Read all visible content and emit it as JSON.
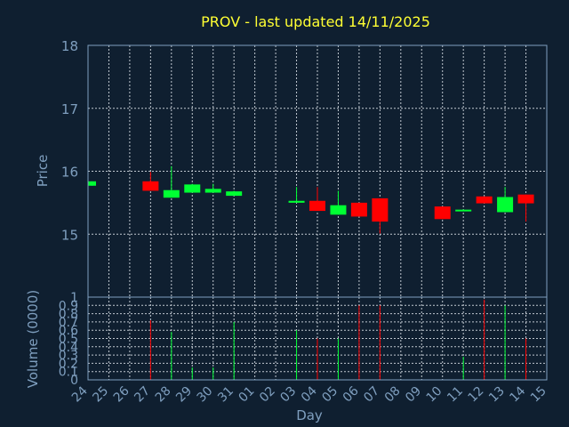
{
  "chart_data": [
    {
      "type": "candlestick",
      "title": "PROV - last updated 14/11/2025",
      "ylabel": "Price",
      "ylim": [
        15.0,
        18.0
      ],
      "yticks": [
        "15",
        "16",
        "17",
        "18"
      ],
      "grid": true,
      "colors": {
        "up": "#00ff33",
        "down": "#ff0000",
        "grid": "#c0c8d0",
        "axis": "#7f9fbf",
        "title": "#ffff33",
        "background": "#0f1f30"
      },
      "candles": [
        {
          "day": "24",
          "open": 15.77,
          "high": 15.84,
          "low": 15.77,
          "close": 15.84
        },
        {
          "day": "27",
          "open": 15.84,
          "high": 15.99,
          "low": 15.69,
          "close": 15.69
        },
        {
          "day": "28",
          "open": 15.58,
          "high": 16.08,
          "low": 15.58,
          "close": 15.7
        },
        {
          "day": "29",
          "open": 15.66,
          "high": 15.8,
          "low": 15.66,
          "close": 15.79
        },
        {
          "day": "30",
          "open": 15.66,
          "high": 15.8,
          "low": 15.66,
          "close": 15.72
        },
        {
          "day": "31",
          "open": 15.61,
          "high": 15.69,
          "low": 15.61,
          "close": 15.68
        },
        {
          "day": "03",
          "open": 15.5,
          "high": 15.75,
          "low": 15.5,
          "close": 15.53
        },
        {
          "day": "04",
          "open": 15.53,
          "high": 15.75,
          "low": 15.37,
          "close": 15.37
        },
        {
          "day": "05",
          "open": 15.31,
          "high": 15.69,
          "low": 15.31,
          "close": 15.46
        },
        {
          "day": "06",
          "open": 15.5,
          "high": 15.5,
          "low": 15.28,
          "close": 15.28
        },
        {
          "day": "07",
          "open": 15.57,
          "high": 15.57,
          "low": 15.01,
          "close": 15.2
        },
        {
          "day": "10",
          "open": 15.44,
          "high": 15.44,
          "low": 15.24,
          "close": 15.24
        },
        {
          "day": "11",
          "open": 15.37,
          "high": 15.39,
          "low": 15.37,
          "close": 15.39
        },
        {
          "day": "12",
          "open": 15.6,
          "high": 15.6,
          "low": 15.49,
          "close": 15.49
        },
        {
          "day": "13",
          "open": 15.35,
          "high": 15.75,
          "low": 15.35,
          "close": 15.59
        },
        {
          "day": "14",
          "open": 15.63,
          "high": 15.63,
          "low": 15.2,
          "close": 15.49
        }
      ]
    },
    {
      "type": "bar",
      "xlabel": "Day",
      "ylabel": "Volume (0000)",
      "ylim": [
        0,
        1
      ],
      "yticks": [
        "0",
        "0.1",
        "0.2",
        "0.3",
        "0.4",
        "0.5",
        "0.6",
        "0.7",
        "0.8",
        "0.9",
        "1"
      ],
      "xticks": [
        "24",
        "25",
        "26",
        "27",
        "28",
        "29",
        "30",
        "31",
        "01",
        "02",
        "03",
        "04",
        "05",
        "06",
        "07",
        "08",
        "09",
        "10",
        "11",
        "12",
        "13",
        "14",
        "15"
      ],
      "grid": true,
      "volumes": [
        {
          "day": "27",
          "value": 0.72,
          "dir": "down"
        },
        {
          "day": "28",
          "value": 0.58,
          "dir": "up"
        },
        {
          "day": "29",
          "value": 0.15,
          "dir": "up"
        },
        {
          "day": "30",
          "value": 0.15,
          "dir": "up"
        },
        {
          "day": "31",
          "value": 0.7,
          "dir": "up"
        },
        {
          "day": "03",
          "value": 0.6,
          "dir": "up"
        },
        {
          "day": "04",
          "value": 0.5,
          "dir": "down"
        },
        {
          "day": "05",
          "value": 0.5,
          "dir": "up"
        },
        {
          "day": "06",
          "value": 0.9,
          "dir": "down"
        },
        {
          "day": "07",
          "value": 0.9,
          "dir": "down"
        },
        {
          "day": "11",
          "value": 0.28,
          "dir": "up"
        },
        {
          "day": "12",
          "value": 0.97,
          "dir": "down"
        },
        {
          "day": "13",
          "value": 0.9,
          "dir": "up"
        },
        {
          "day": "14",
          "value": 0.5,
          "dir": "down"
        }
      ]
    }
  ]
}
